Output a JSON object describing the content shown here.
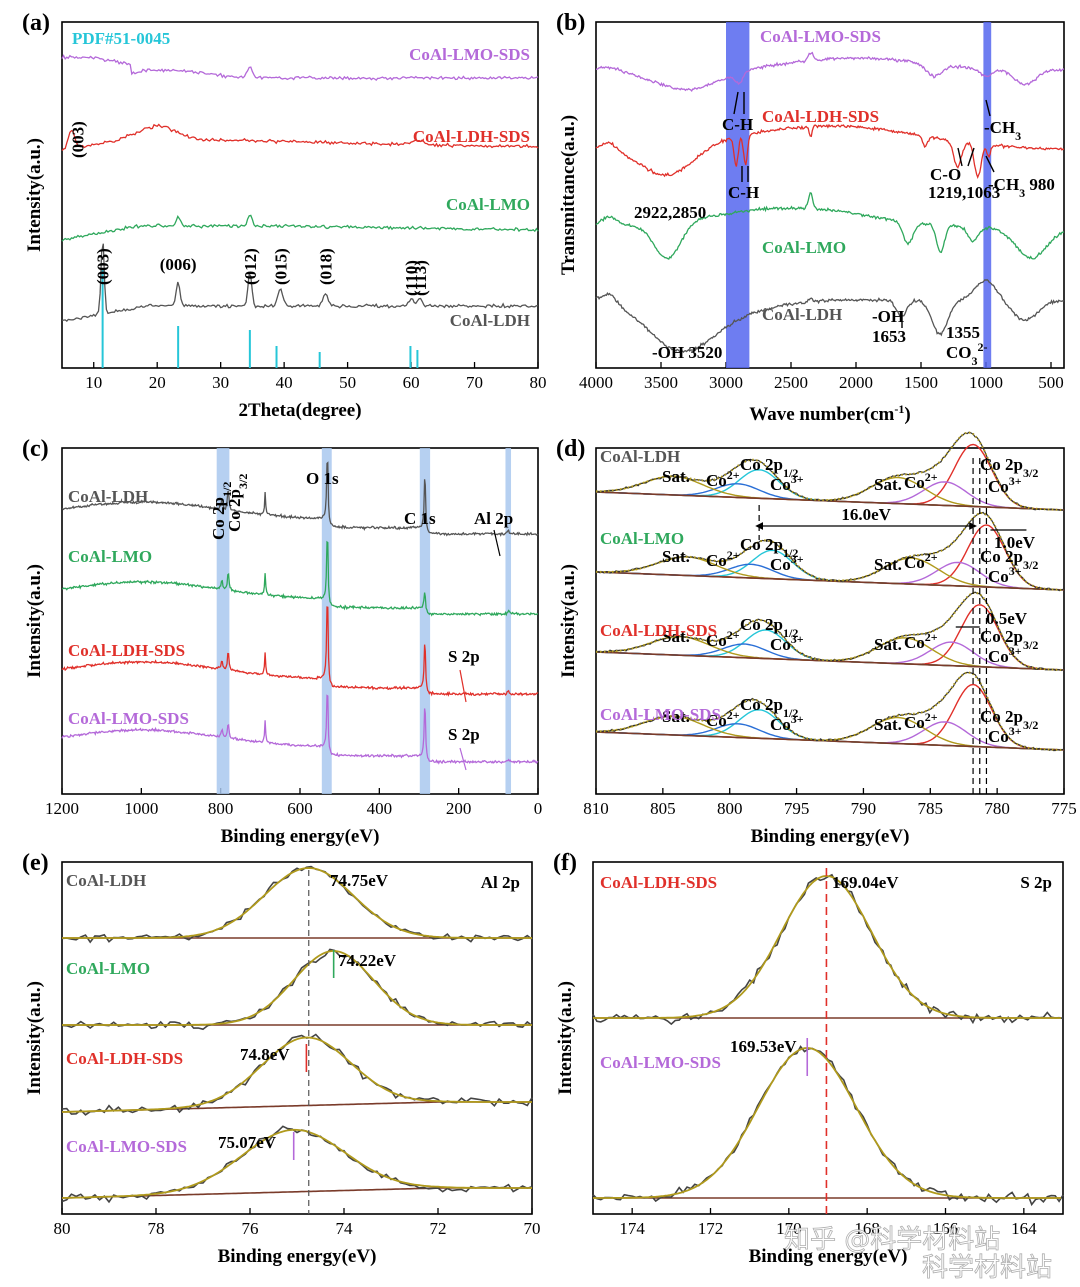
{
  "watermark": {
    "text1": "知乎 @科学材料站",
    "text2": "科学材料站"
  },
  "colors": {
    "purple": "#b469d9",
    "red": "#e0302a",
    "green": "#2fa85c",
    "gray": "#555555",
    "cyan": "#26c6d8",
    "blue": "#2a6fd6",
    "olive": "#b09a1c",
    "brown": "#7a3b2a",
    "band_blue": "#5566ee",
    "band_light": "#a9c8ef"
  },
  "chart_data": [
    {
      "id": "a",
      "type": "line",
      "panel_label": "(a)",
      "xlabel": "2Theta(degree)",
      "ylabel": "Intensity(a.u.)",
      "xlim": [
        5,
        80
      ],
      "xticks": [
        10,
        20,
        30,
        40,
        50,
        60,
        70,
        80
      ],
      "pdf_label": "PDF#51-0045",
      "pdf_lines": [
        {
          "x": 11.4,
          "h": 1.0
        },
        {
          "x": 23.3,
          "h": 0.42
        },
        {
          "x": 34.6,
          "h": 0.38
        },
        {
          "x": 38.8,
          "h": 0.22
        },
        {
          "x": 45.6,
          "h": 0.16
        },
        {
          "x": 59.9,
          "h": 0.22
        },
        {
          "x": 61.0,
          "h": 0.18
        }
      ],
      "series": [
        {
          "name": "CoAl-LMO-SDS",
          "color": "purple"
        },
        {
          "name": "CoAl-LDH-SDS",
          "color": "red"
        },
        {
          "name": "CoAl-LMO",
          "color": "green"
        },
        {
          "name": "CoAl-LDH",
          "color": "gray"
        }
      ],
      "peak_labels": [
        {
          "text": "(003)",
          "x": 11.4
        },
        {
          "text": "(006)",
          "x": 23.3
        },
        {
          "text": "(012)",
          "x": 34.6
        },
        {
          "text": "(015)",
          "x": 39.4
        },
        {
          "text": "(018)",
          "x": 46.5
        },
        {
          "text": "(110)",
          "x": 60.0
        },
        {
          "text": "(113)",
          "x": 61.4
        }
      ],
      "sds_peak_label": {
        "text": "(003)",
        "x": 6.5
      }
    },
    {
      "id": "b",
      "type": "line",
      "panel_label": "(b)",
      "xlabel": "Wave number(cm",
      "xlabel_sup": "-1",
      "xlabel_end": ")",
      "ylabel": "Transmittance(a.u.)",
      "xlim": [
        4000,
        400
      ],
      "xticks": [
        4000,
        3500,
        3000,
        2500,
        2000,
        1500,
        1000,
        500
      ],
      "bands": [
        [
          3000,
          2820
        ],
        [
          1020,
          960
        ]
      ],
      "series": [
        {
          "name": "CoAl-LMO-SDS",
          "color": "purple"
        },
        {
          "name": "CoAl-LDH-SDS",
          "color": "red"
        },
        {
          "name": "CoAl-LMO",
          "color": "green"
        },
        {
          "name": "CoAl-LDH",
          "color": "gray"
        }
      ],
      "annotations": {
        "ch_top": "C-H",
        "ch_red": "C-H",
        "ch_values": "2922,2850",
        "ch3_top": "-CH",
        "ch3_top_sub": "3",
        "co": "C-O",
        "co_values": "1219,1063",
        "ch3_red": "-CH",
        "ch3_red_sub": "3",
        "ch3_red_val": "980",
        "oh_label": "-OH",
        "oh_value": "1653",
        "oh_3520": "-OH 3520",
        "co3_value": "1355",
        "co3": "CO",
        "co3_sub": "3",
        "co3_sup": "2-"
      }
    },
    {
      "id": "c",
      "type": "line",
      "panel_label": "(c)",
      "xlabel": "Binding energy(eV)",
      "ylabel": "Intensity(a.u.)",
      "xlim": [
        1200,
        0
      ],
      "xticks": [
        1200,
        1000,
        800,
        600,
        400,
        200,
        0
      ],
      "bands": [
        [
          810,
          778
        ],
        [
          545,
          520
        ],
        [
          298,
          272
        ],
        [
          82,
          68
        ]
      ],
      "peak_labels": {
        "co_a": "Co 2p",
        "co_a_sub": "1/2",
        "co_b": "Co 2p",
        "co_b_sub": "3/2",
        "o1s": "O 1s",
        "c1s": "C 1s",
        "al2p": "Al 2p",
        "s2p_1": "S 2p",
        "s2p_2": "S 2p"
      },
      "series": [
        {
          "name": "CoAl-LDH",
          "color": "gray"
        },
        {
          "name": "CoAl-LMO",
          "color": "green"
        },
        {
          "name": "CoAl-LDH-SDS",
          "color": "red"
        },
        {
          "name": "CoAl-LMO-SDS",
          "color": "purple"
        }
      ]
    },
    {
      "id": "d",
      "type": "line",
      "panel_label": "(d)",
      "xlabel": "Binding energy(eV)",
      "ylabel": "Intensity(a.u.)",
      "xlim": [
        810,
        775
      ],
      "xticks": [
        810,
        805,
        800,
        795,
        790,
        785,
        780,
        775
      ],
      "series": [
        {
          "name": "CoAl-LDH",
          "color": "gray",
          "main_peak": 781.8
        },
        {
          "name": "CoAl-LMO",
          "color": "green",
          "main_peak": 780.8
        },
        {
          "name": "CoAl-LDH-SDS",
          "color": "red",
          "main_peak": 781.3
        },
        {
          "name": "CoAl-LMO-SDS",
          "color": "purple",
          "main_peak": 781.8
        }
      ],
      "components": {
        "sat": "Sat.",
        "co2": "Co",
        "co2_sup": "2+",
        "co3": "Co",
        "co3_sup": "3+",
        "p12": "Co 2p",
        "p12_sub": "1/2",
        "p32": "Co 2p",
        "p32_sub": "3/2"
      },
      "annotations": {
        "split": "16.0eV",
        "shift1": "1.0eV",
        "shift2": "0.5eV"
      }
    },
    {
      "id": "e",
      "type": "line",
      "panel_label": "(e)",
      "element_label": "Al 2p",
      "xlabel": "Binding energy(eV)",
      "ylabel": "Intensity(a.u.)",
      "xlim": [
        80,
        70
      ],
      "xticks": [
        80,
        78,
        76,
        74,
        72,
        70
      ],
      "series": [
        {
          "name": "CoAl-LDH",
          "color": "gray",
          "peak": 74.75,
          "label": "74.75eV"
        },
        {
          "name": "CoAl-LMO",
          "color": "green",
          "peak": 74.22,
          "label": "74.22eV"
        },
        {
          "name": "CoAl-LDH-SDS",
          "color": "red",
          "peak": 74.8,
          "label": "74.8eV"
        },
        {
          "name": "CoAl-LMO-SDS",
          "color": "purple",
          "peak": 75.07,
          "label": "75.07eV"
        }
      ]
    },
    {
      "id": "f",
      "type": "line",
      "panel_label": "(f)",
      "element_label": "S 2p",
      "xlabel": "Binding energy(eV)",
      "ylabel": "Intensity(a.u.)",
      "xlim": [
        175,
        163
      ],
      "xticks": [
        174,
        172,
        170,
        168,
        166,
        164
      ],
      "series": [
        {
          "name": "CoAl-LDH-SDS",
          "color": "red",
          "peak": 169.04,
          "label": "169.04eV"
        },
        {
          "name": "CoAl-LMO-SDS",
          "color": "purple",
          "peak": 169.53,
          "label": "169.53eV"
        }
      ]
    }
  ]
}
